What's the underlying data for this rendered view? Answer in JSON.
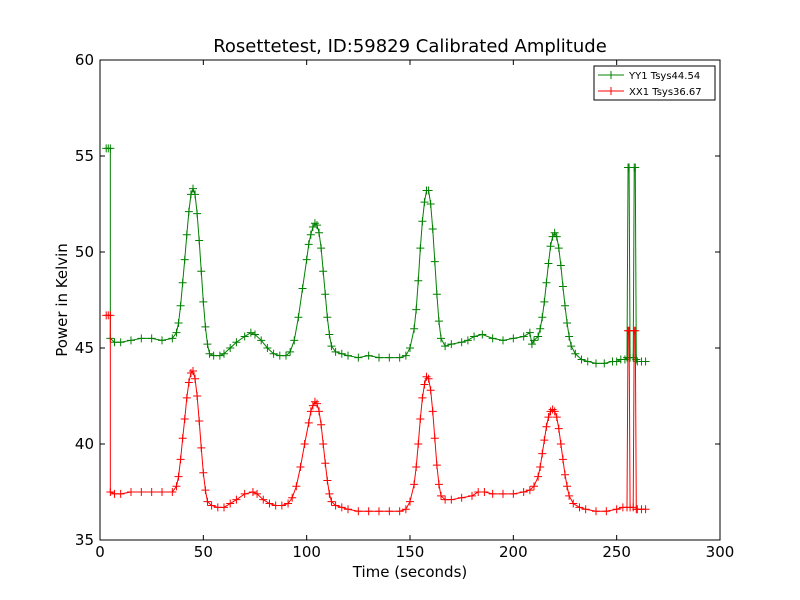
{
  "chart_data": {
    "type": "line",
    "title": "Rosettetest, ID:59829 Calibrated Amplitude",
    "xlabel": "Time (seconds)",
    "ylabel": "Power in Kelvin",
    "xlim": [
      0,
      300
    ],
    "ylim": [
      35,
      60
    ],
    "xticks": [
      0,
      50,
      100,
      150,
      200,
      250,
      300
    ],
    "yticks": [
      35,
      40,
      45,
      50,
      55,
      60
    ],
    "grid": false,
    "legend_position": "top-right",
    "marker": "+",
    "series": [
      {
        "name": "YY1 Tsys44.54",
        "color": "#008000",
        "points": [
          [
            3,
            55.4
          ],
          [
            4,
            55.4
          ],
          [
            5,
            55.4
          ],
          [
            5,
            45.5
          ],
          [
            7,
            45.3
          ],
          [
            10,
            45.3
          ],
          [
            15,
            45.4
          ],
          [
            20,
            45.5
          ],
          [
            25,
            45.5
          ],
          [
            30,
            45.4
          ],
          [
            35,
            45.5
          ],
          [
            37,
            45.8
          ],
          [
            38,
            46.3
          ],
          [
            39,
            47.2
          ],
          [
            40,
            48.4
          ],
          [
            41,
            49.6
          ],
          [
            42,
            50.9
          ],
          [
            43,
            52.1
          ],
          [
            44,
            53.0
          ],
          [
            45,
            53.3
          ],
          [
            46,
            53.0
          ],
          [
            47,
            52.0
          ],
          [
            48,
            50.6
          ],
          [
            49,
            49.0
          ],
          [
            50,
            47.4
          ],
          [
            51,
            46.1
          ],
          [
            52,
            45.2
          ],
          [
            53,
            44.7
          ],
          [
            55,
            44.6
          ],
          [
            58,
            44.6
          ],
          [
            60,
            44.7
          ],
          [
            63,
            45.0
          ],
          [
            66,
            45.3
          ],
          [
            70,
            45.6
          ],
          [
            73,
            45.8
          ],
          [
            75,
            45.7
          ],
          [
            78,
            45.4
          ],
          [
            81,
            45.0
          ],
          [
            84,
            44.7
          ],
          [
            87,
            44.6
          ],
          [
            90,
            44.6
          ],
          [
            92,
            44.8
          ],
          [
            94,
            45.4
          ],
          [
            96,
            46.6
          ],
          [
            98,
            48.1
          ],
          [
            100,
            49.6
          ],
          [
            101,
            50.4
          ],
          [
            102,
            50.9
          ],
          [
            103,
            51.3
          ],
          [
            104,
            51.5
          ],
          [
            105,
            51.4
          ],
          [
            106,
            51.0
          ],
          [
            107,
            50.2
          ],
          [
            108,
            49.0
          ],
          [
            109,
            47.8
          ],
          [
            110,
            46.6
          ],
          [
            111,
            45.7
          ],
          [
            112,
            45.1
          ],
          [
            114,
            44.8
          ],
          [
            117,
            44.7
          ],
          [
            120,
            44.6
          ],
          [
            125,
            44.5
          ],
          [
            130,
            44.6
          ],
          [
            135,
            44.5
          ],
          [
            140,
            44.5
          ],
          [
            145,
            44.5
          ],
          [
            148,
            44.6
          ],
          [
            150,
            45.0
          ],
          [
            152,
            46.0
          ],
          [
            153,
            47.0
          ],
          [
            154,
            48.5
          ],
          [
            155,
            50.2
          ],
          [
            156,
            51.6
          ],
          [
            157,
            52.6
          ],
          [
            158,
            53.2
          ],
          [
            159,
            53.2
          ],
          [
            160,
            52.5
          ],
          [
            161,
            51.2
          ],
          [
            162,
            49.5
          ],
          [
            163,
            47.8
          ],
          [
            164,
            46.4
          ],
          [
            165,
            45.5
          ],
          [
            167,
            45.1
          ],
          [
            170,
            45.2
          ],
          [
            175,
            45.3
          ],
          [
            178,
            45.4
          ],
          [
            181,
            45.6
          ],
          [
            185,
            45.7
          ],
          [
            190,
            45.5
          ],
          [
            195,
            45.4
          ],
          [
            200,
            45.5
          ],
          [
            205,
            45.6
          ],
          [
            208,
            45.8
          ],
          [
            209,
            45.2
          ],
          [
            210,
            45.4
          ],
          [
            212,
            45.6
          ],
          [
            213,
            46.0
          ],
          [
            214,
            46.6
          ],
          [
            215,
            47.4
          ],
          [
            216,
            48.4
          ],
          [
            217,
            49.4
          ],
          [
            218,
            50.3
          ],
          [
            219,
            50.8
          ],
          [
            220,
            51.0
          ],
          [
            221,
            50.8
          ],
          [
            222,
            50.2
          ],
          [
            223,
            49.3
          ],
          [
            224,
            48.2
          ],
          [
            225,
            47.2
          ],
          [
            226,
            46.3
          ],
          [
            227,
            45.6
          ],
          [
            228,
            45.1
          ],
          [
            230,
            44.7
          ],
          [
            233,
            44.4
          ],
          [
            236,
            44.3
          ],
          [
            240,
            44.2
          ],
          [
            244,
            44.2
          ],
          [
            248,
            44.3
          ],
          [
            250,
            44.3
          ],
          [
            252,
            44.4
          ],
          [
            254,
            44.4
          ],
          [
            255,
            44.5
          ],
          [
            255.5,
            54.4
          ],
          [
            256,
            54.4
          ],
          [
            256.5,
            44.5
          ],
          [
            258,
            44.5
          ],
          [
            258.5,
            54.4
          ],
          [
            259,
            54.4
          ],
          [
            259.5,
            44.4
          ],
          [
            260,
            44.3
          ],
          [
            262,
            44.3
          ],
          [
            264,
            44.3
          ]
        ]
      },
      {
        "name": "XX1 Tsys36.67",
        "color": "#ff0000",
        "points": [
          [
            3,
            46.7
          ],
          [
            4,
            46.7
          ],
          [
            5,
            46.7
          ],
          [
            5,
            37.5
          ],
          [
            7,
            37.4
          ],
          [
            10,
            37.4
          ],
          [
            15,
            37.5
          ],
          [
            20,
            37.5
          ],
          [
            25,
            37.5
          ],
          [
            30,
            37.5
          ],
          [
            35,
            37.5
          ],
          [
            37,
            37.8
          ],
          [
            38,
            38.3
          ],
          [
            39,
            39.2
          ],
          [
            40,
            40.3
          ],
          [
            41,
            41.3
          ],
          [
            42,
            42.4
          ],
          [
            43,
            43.2
          ],
          [
            44,
            43.7
          ],
          [
            45,
            43.8
          ],
          [
            46,
            43.4
          ],
          [
            47,
            42.5
          ],
          [
            48,
            41.2
          ],
          [
            49,
            39.8
          ],
          [
            50,
            38.5
          ],
          [
            51,
            37.6
          ],
          [
            52,
            37.0
          ],
          [
            54,
            36.8
          ],
          [
            57,
            36.7
          ],
          [
            60,
            36.7
          ],
          [
            63,
            36.9
          ],
          [
            66,
            37.1
          ],
          [
            70,
            37.4
          ],
          [
            74,
            37.5
          ],
          [
            76,
            37.4
          ],
          [
            79,
            37.1
          ],
          [
            82,
            36.9
          ],
          [
            85,
            36.8
          ],
          [
            88,
            36.8
          ],
          [
            91,
            36.9
          ],
          [
            93,
            37.2
          ],
          [
            95,
            37.8
          ],
          [
            97,
            38.8
          ],
          [
            99,
            40.0
          ],
          [
            101,
            41.1
          ],
          [
            102,
            41.7
          ],
          [
            103,
            42.0
          ],
          [
            104,
            42.2
          ],
          [
            105,
            42.1
          ],
          [
            106,
            41.7
          ],
          [
            107,
            41.0
          ],
          [
            108,
            40.0
          ],
          [
            109,
            39.0
          ],
          [
            110,
            38.1
          ],
          [
            111,
            37.4
          ],
          [
            112,
            37.0
          ],
          [
            114,
            36.8
          ],
          [
            117,
            36.7
          ],
          [
            120,
            36.6
          ],
          [
            125,
            36.5
          ],
          [
            130,
            36.5
          ],
          [
            135,
            36.5
          ],
          [
            140,
            36.5
          ],
          [
            145,
            36.5
          ],
          [
            148,
            36.6
          ],
          [
            150,
            37.0
          ],
          [
            152,
            37.9
          ],
          [
            153,
            38.8
          ],
          [
            154,
            40.0
          ],
          [
            155,
            41.3
          ],
          [
            156,
            42.4
          ],
          [
            157,
            43.1
          ],
          [
            158,
            43.5
          ],
          [
            159,
            43.4
          ],
          [
            160,
            42.8
          ],
          [
            161,
            41.7
          ],
          [
            162,
            40.3
          ],
          [
            163,
            38.9
          ],
          [
            164,
            37.9
          ],
          [
            165,
            37.3
          ],
          [
            167,
            37.1
          ],
          [
            170,
            37.1
          ],
          [
            175,
            37.2
          ],
          [
            180,
            37.3
          ],
          [
            183,
            37.5
          ],
          [
            186,
            37.5
          ],
          [
            190,
            37.4
          ],
          [
            195,
            37.4
          ],
          [
            200,
            37.4
          ],
          [
            205,
            37.5
          ],
          [
            208,
            37.6
          ],
          [
            210,
            37.8
          ],
          [
            212,
            38.3
          ],
          [
            213,
            38.8
          ],
          [
            214,
            39.5
          ],
          [
            215,
            40.2
          ],
          [
            216,
            40.9
          ],
          [
            217,
            41.4
          ],
          [
            218,
            41.7
          ],
          [
            219,
            41.8
          ],
          [
            220,
            41.7
          ],
          [
            221,
            41.4
          ],
          [
            222,
            40.8
          ],
          [
            223,
            40.0
          ],
          [
            224,
            39.2
          ],
          [
            225,
            38.4
          ],
          [
            226,
            37.8
          ],
          [
            227,
            37.3
          ],
          [
            229,
            36.9
          ],
          [
            232,
            36.7
          ],
          [
            235,
            36.6
          ],
          [
            240,
            36.5
          ],
          [
            245,
            36.5
          ],
          [
            250,
            36.6
          ],
          [
            253,
            36.7
          ],
          [
            255,
            36.7
          ],
          [
            255.5,
            45.9
          ],
          [
            256,
            45.9
          ],
          [
            256.5,
            36.7
          ],
          [
            258,
            36.7
          ],
          [
            258.5,
            45.9
          ],
          [
            259,
            45.9
          ],
          [
            259.5,
            36.6
          ],
          [
            260,
            36.6
          ],
          [
            262,
            36.6
          ],
          [
            264,
            36.6
          ]
        ]
      }
    ]
  }
}
